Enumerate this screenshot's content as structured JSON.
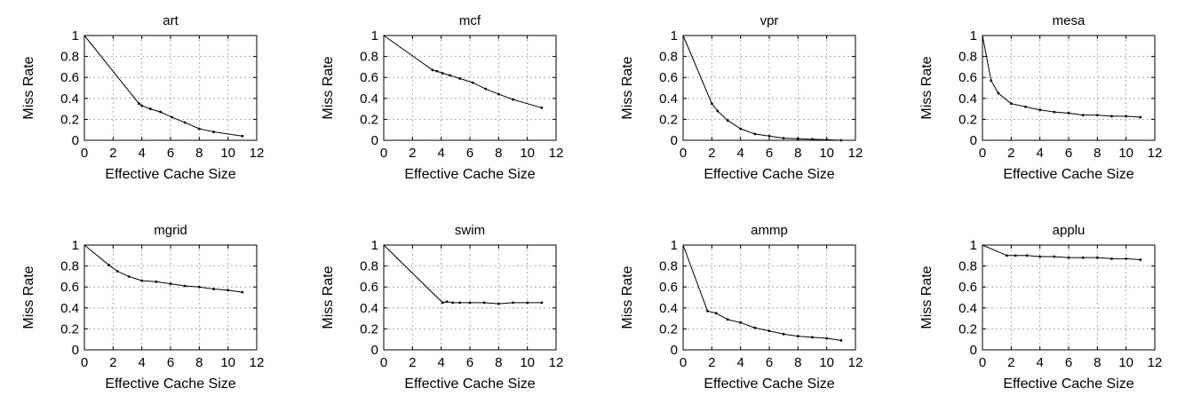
{
  "chart_data": [
    {
      "type": "line",
      "title": "art",
      "xlabel": "Effective Cache Size",
      "ylabel": "Miss Rate",
      "xlim": [
        0,
        12
      ],
      "ylim": [
        0,
        1
      ],
      "xticks": [
        "0",
        "2",
        "4",
        "6",
        "8",
        "10",
        "12"
      ],
      "yticks": [
        "0",
        "0.2",
        "0.4",
        "0.6",
        "0.8",
        "1"
      ],
      "grid": true,
      "series": [
        {
          "x": [
            0,
            3.8,
            4.0,
            4.6,
            5.3,
            6.1,
            7.0,
            8.0,
            9.0,
            11.0
          ],
          "y": [
            1.0,
            0.35,
            0.33,
            0.3,
            0.27,
            0.22,
            0.17,
            0.11,
            0.08,
            0.04
          ]
        }
      ]
    },
    {
      "type": "line",
      "title": "mcf",
      "xlabel": "Effective Cache Size",
      "ylabel": "Miss Rate",
      "xlim": [
        0,
        12
      ],
      "ylim": [
        0,
        1
      ],
      "xticks": [
        "0",
        "2",
        "4",
        "6",
        "8",
        "10",
        "12"
      ],
      "yticks": [
        "0",
        "0.2",
        "0.4",
        "0.6",
        "0.8",
        "1"
      ],
      "grid": true,
      "series": [
        {
          "x": [
            0,
            3.4,
            3.7,
            4.1,
            4.6,
            5.3,
            6.2,
            7.1,
            8.0,
            9.0,
            11.0
          ],
          "y": [
            1.0,
            0.67,
            0.66,
            0.64,
            0.62,
            0.59,
            0.55,
            0.49,
            0.44,
            0.39,
            0.31
          ]
        }
      ]
    },
    {
      "type": "line",
      "title": "vpr",
      "xlabel": "Effective Cache Size",
      "ylabel": "Miss Rate",
      "xlim": [
        0,
        12
      ],
      "ylim": [
        0,
        1
      ],
      "xticks": [
        "0",
        "2",
        "4",
        "6",
        "8",
        "10",
        "12"
      ],
      "yticks": [
        "0",
        "0.2",
        "0.4",
        "0.6",
        "0.8",
        "1"
      ],
      "grid": true,
      "series": [
        {
          "x": [
            0,
            2.0,
            2.4,
            3.1,
            4.0,
            5.0,
            6.0,
            7.0,
            8.0,
            9.0,
            10.0,
            11.0
          ],
          "y": [
            1.0,
            0.35,
            0.28,
            0.19,
            0.11,
            0.06,
            0.04,
            0.02,
            0.015,
            0.01,
            0.005,
            0.0
          ]
        }
      ]
    },
    {
      "type": "line",
      "title": "mesa",
      "xlabel": "Effective Cache Size",
      "ylabel": "Miss Rate",
      "xlim": [
        0,
        12
      ],
      "ylim": [
        0,
        1
      ],
      "xticks": [
        "0",
        "2",
        "4",
        "6",
        "8",
        "10",
        "12"
      ],
      "yticks": [
        "0",
        "0.2",
        "0.4",
        "0.6",
        "0.8",
        "1"
      ],
      "grid": true,
      "series": [
        {
          "x": [
            0,
            0.6,
            1.1,
            2.0,
            3.0,
            4.0,
            5.0,
            6.0,
            7.0,
            8.0,
            9.0,
            10.0,
            11.0
          ],
          "y": [
            1.0,
            0.57,
            0.45,
            0.35,
            0.32,
            0.29,
            0.27,
            0.26,
            0.24,
            0.24,
            0.23,
            0.23,
            0.22
          ]
        }
      ]
    },
    {
      "type": "line",
      "title": "mgrid",
      "xlabel": "Effective Cache Size",
      "ylabel": "Miss Rate",
      "xlim": [
        0,
        12
      ],
      "ylim": [
        0,
        1
      ],
      "xticks": [
        "0",
        "2",
        "4",
        "6",
        "8",
        "10",
        "12"
      ],
      "yticks": [
        "0",
        "0.2",
        "0.4",
        "0.6",
        "0.8",
        "1"
      ],
      "grid": true,
      "series": [
        {
          "x": [
            0,
            1.7,
            2.3,
            3.1,
            4.0,
            5.0,
            6.0,
            7.0,
            8.0,
            9.0,
            10.0,
            11.0
          ],
          "y": [
            1.0,
            0.81,
            0.75,
            0.7,
            0.66,
            0.65,
            0.63,
            0.61,
            0.6,
            0.58,
            0.57,
            0.55
          ]
        }
      ]
    },
    {
      "type": "line",
      "title": "swim",
      "xlabel": "Effective Cache Size",
      "ylabel": "Miss Rate",
      "xlim": [
        0,
        12
      ],
      "ylim": [
        0,
        1
      ],
      "xticks": [
        "0",
        "2",
        "4",
        "6",
        "8",
        "10",
        "12"
      ],
      "yticks": [
        "0",
        "0.2",
        "0.4",
        "0.6",
        "0.8",
        "1"
      ],
      "grid": true,
      "series": [
        {
          "x": [
            0,
            4.1,
            4.4,
            4.8,
            5.3,
            6.0,
            7.0,
            8.0,
            9.0,
            10.0,
            11.0
          ],
          "y": [
            1.0,
            0.45,
            0.46,
            0.45,
            0.45,
            0.45,
            0.45,
            0.44,
            0.45,
            0.45,
            0.45
          ]
        }
      ]
    },
    {
      "type": "line",
      "title": "ammp",
      "xlabel": "Effective Cache Size",
      "ylabel": "Miss Rate",
      "xlim": [
        0,
        12
      ],
      "ylim": [
        0,
        1
      ],
      "xticks": [
        "0",
        "2",
        "4",
        "6",
        "8",
        "10",
        "12"
      ],
      "yticks": [
        "0",
        "0.2",
        "0.4",
        "0.6",
        "0.8",
        "1"
      ],
      "grid": true,
      "series": [
        {
          "x": [
            0,
            1.7,
            2.3,
            3.1,
            4.0,
            5.0,
            6.0,
            7.0,
            8.0,
            9.0,
            10.0,
            11.0
          ],
          "y": [
            1.0,
            0.37,
            0.35,
            0.29,
            0.26,
            0.21,
            0.18,
            0.15,
            0.13,
            0.12,
            0.11,
            0.09
          ]
        }
      ]
    },
    {
      "type": "line",
      "title": "applu",
      "xlabel": "Effective Cache Size",
      "ylabel": "Miss Rate",
      "xlim": [
        0,
        12
      ],
      "ylim": [
        0,
        1
      ],
      "xticks": [
        "0",
        "2",
        "4",
        "6",
        "8",
        "10",
        "12"
      ],
      "yticks": [
        "0",
        "0.2",
        "0.4",
        "0.6",
        "0.8",
        "1"
      ],
      "grid": true,
      "series": [
        {
          "x": [
            0,
            1.7,
            2.3,
            3.1,
            4.0,
            5.0,
            6.0,
            7.0,
            8.0,
            9.0,
            10.0,
            11.0
          ],
          "y": [
            1.0,
            0.9,
            0.9,
            0.9,
            0.89,
            0.89,
            0.88,
            0.88,
            0.88,
            0.87,
            0.87,
            0.86
          ]
        }
      ]
    }
  ]
}
